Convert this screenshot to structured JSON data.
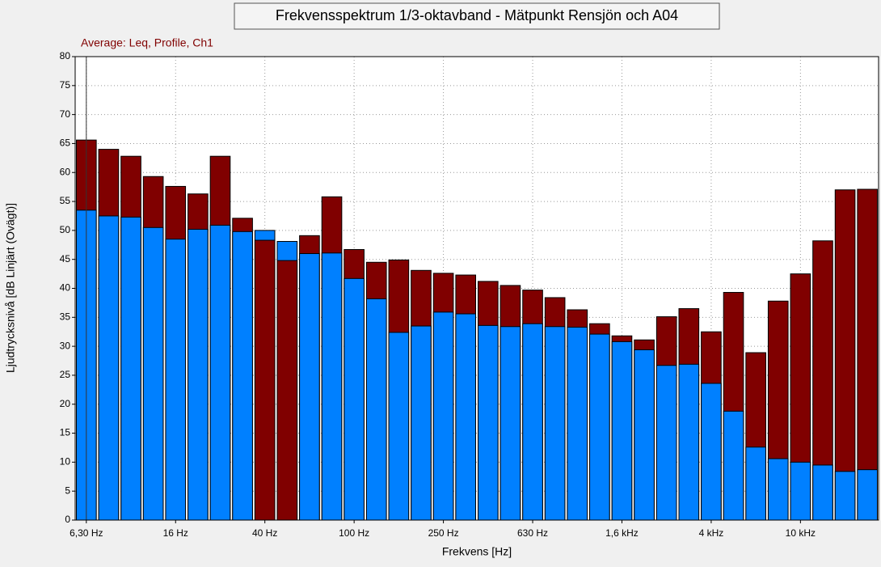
{
  "chart_data": {
    "type": "bar",
    "title": "Frekvensspektrum 1/3-oktavband - Mätpunkt Rensjön och A04",
    "annotation": "Average: Leq, Profile, Ch1",
    "x_label": "Frekvens [Hz]",
    "y_label": "Ljudtrycksnivå [dB Linjärt (Ovägt)]",
    "categories": [
      "6,30 Hz",
      null,
      null,
      null,
      "16 Hz",
      null,
      null,
      null,
      "40 Hz",
      null,
      null,
      null,
      "100 Hz",
      null,
      null,
      null,
      "250 Hz",
      null,
      null,
      null,
      "630 Hz",
      null,
      null,
      null,
      "1,6 kHz",
      null,
      null,
      null,
      "4 kHz",
      null,
      null,
      null,
      "10 kHz",
      null,
      null,
      null
    ],
    "series": [
      {
        "color": "#800000",
        "values": [
          65.6,
          64,
          62.8,
          59.3,
          57.6,
          56.3,
          62.8,
          52.1,
          48.3,
          44.8,
          49.1,
          55.8,
          46.7,
          44.5,
          44.9,
          43.1,
          42.6,
          42.3,
          41.2,
          40.5,
          39.7,
          38.4,
          36.3,
          33.9,
          31.8,
          31.1,
          35.1,
          36.5,
          32.5,
          39.3,
          28.9,
          37.8,
          42.5,
          48.2,
          57,
          57.1
        ]
      },
      {
        "color": "#0080ff",
        "values": [
          53.5,
          52.5,
          52.3,
          50.5,
          48.5,
          50.2,
          50.9,
          49.8,
          50,
          48.1,
          46,
          46.1,
          41.7,
          38.2,
          32.4,
          33.5,
          35.9,
          35.6,
          33.6,
          33.4,
          33.9,
          33.4,
          33.3,
          32.1,
          30.8,
          29.4,
          26.7,
          26.9,
          23.6,
          18.8,
          12.6,
          10.6,
          10,
          9.5,
          8.4,
          8.7
        ]
      }
    ],
    "ylim": [
      0,
      80
    ],
    "yticks": [
      0,
      5,
      10,
      15,
      20,
      25,
      30,
      35,
      40,
      45,
      50,
      55,
      60,
      65,
      70,
      75,
      80
    ],
    "grid": true
  }
}
